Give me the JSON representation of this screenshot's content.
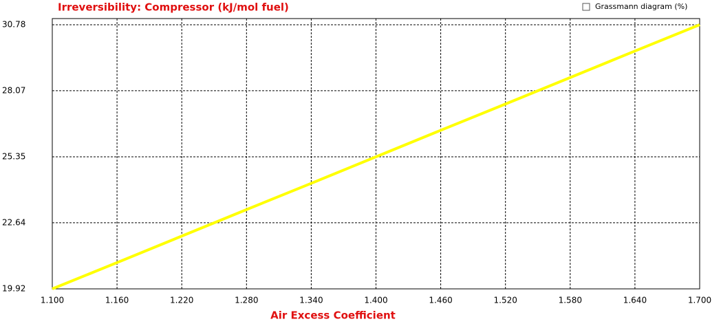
{
  "chart_data": {
    "type": "line",
    "title": "Irreversibility: Compressor (kJ/mol fuel)",
    "x_label": "Air Excess Coefficient",
    "x": [
      1.1,
      1.16,
      1.22,
      1.28,
      1.34,
      1.4,
      1.46,
      1.52,
      1.58,
      1.64,
      1.7
    ],
    "series": [
      {
        "name": "Compressor",
        "color": "#ffff00",
        "values": [
          19.92,
          21.0,
          22.09,
          23.18,
          24.26,
          25.35,
          26.44,
          27.52,
          28.61,
          29.7,
          30.78
        ]
      }
    ],
    "xlim": [
      1.1,
      1.7
    ],
    "xticks": [
      {
        "value": 1.1,
        "label": "1.100"
      },
      {
        "value": 1.16,
        "label": "1.160"
      },
      {
        "value": 1.22,
        "label": "1.220"
      },
      {
        "value": 1.28,
        "label": "1.280"
      },
      {
        "value": 1.34,
        "label": "1.340"
      },
      {
        "value": 1.4,
        "label": "1.400"
      },
      {
        "value": 1.46,
        "label": "1.460"
      },
      {
        "value": 1.52,
        "label": "1.520"
      },
      {
        "value": 1.58,
        "label": "1.580"
      },
      {
        "value": 1.64,
        "label": "1.640"
      },
      {
        "value": 1.7,
        "label": "1.700"
      }
    ],
    "ylim": [
      19.92,
      30.78
    ],
    "yticks": [
      19.92,
      22.64,
      25.35,
      28.07,
      30.78
    ],
    "grid": true
  },
  "checkbox": {
    "label": "Grassmann diagram (%)",
    "checked": false
  }
}
